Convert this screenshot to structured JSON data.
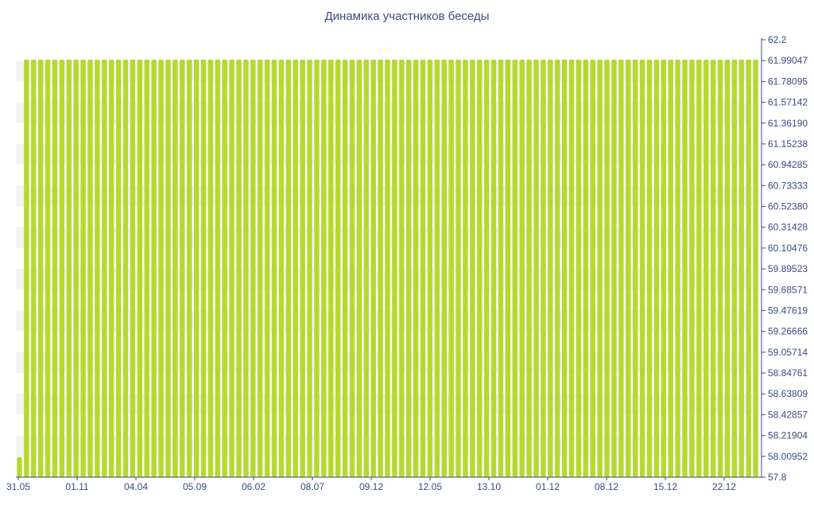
{
  "chart_data": {
    "type": "bar",
    "title": "Динамика участников беседы",
    "xlabel": "",
    "ylabel": "",
    "ylim": [
      57.8,
      62.2
    ],
    "y_ticks": [
      "62.2",
      "61.99047",
      "61.78095",
      "61.57142",
      "61.36190",
      "61.15238",
      "60.94285",
      "60.73333",
      "60.52380",
      "60.31428",
      "60.10476",
      "59.89523",
      "59.68571",
      "59.47619",
      "59.26666",
      "59.05714",
      "58.84761",
      "58.63809",
      "58.42857",
      "58.21904",
      "58.00952",
      "57.8"
    ],
    "x_tick_labels": [
      "31.05",
      "01.11",
      "04.04",
      "05.09",
      "06.02",
      "08.07",
      "09.12",
      "12.05",
      "13.10",
      "01.12",
      "08.12",
      "15.12",
      "22.12"
    ],
    "bar_count": 105,
    "values_description": "first bar 58, all remaining bars 62",
    "values": [
      58,
      62,
      62,
      62,
      62,
      62,
      62,
      62,
      62,
      62,
      62,
      62,
      62,
      62,
      62,
      62,
      62,
      62,
      62,
      62,
      62,
      62,
      62,
      62,
      62,
      62,
      62,
      62,
      62,
      62,
      62,
      62,
      62,
      62,
      62,
      62,
      62,
      62,
      62,
      62,
      62,
      62,
      62,
      62,
      62,
      62,
      62,
      62,
      62,
      62,
      62,
      62,
      62,
      62,
      62,
      62,
      62,
      62,
      62,
      62,
      62,
      62,
      62,
      62,
      62,
      62,
      62,
      62,
      62,
      62,
      62,
      62,
      62,
      62,
      62,
      62,
      62,
      62,
      62,
      62,
      62,
      62,
      62,
      62,
      62,
      62,
      62,
      62,
      62,
      62,
      62,
      62,
      62,
      62,
      62,
      62,
      62,
      62,
      62,
      62,
      62,
      62,
      62,
      62,
      62
    ],
    "bar_color": "#b5d930",
    "stripe_color": "#f4f4f4",
    "axis_color": "#3a4a86",
    "grid": false,
    "legend": "none"
  }
}
